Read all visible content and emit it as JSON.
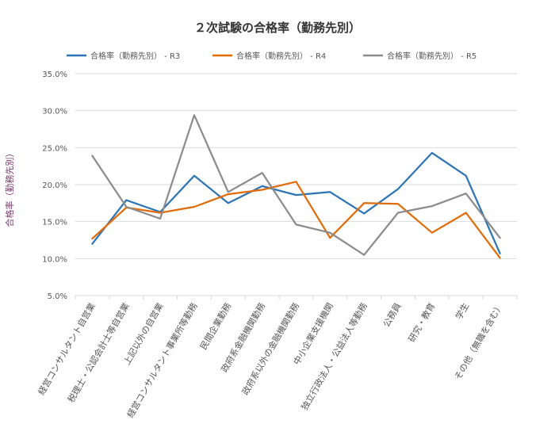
{
  "chart_data": {
    "type": "line",
    "title": "２次試験の合格率（勤務先別）",
    "ylabel": "合格率（勤務先別）",
    "ylim": [
      5.0,
      35.0
    ],
    "y_tick_step": 5.0,
    "y_tick_format": "percent_1dp",
    "grid": "horizontal",
    "legend_position": "top",
    "categories": [
      "経営コンサルタント自営業",
      "税理士・公認会計士等自営業",
      "上記以外の自営業",
      "経営コンサルタント事業所等勤務",
      "民間企業勤務",
      "政府系金融機関勤務",
      "政府系以外の金融機関勤務",
      "中小企業支援機関",
      "独立行政法人・公益法人等勤務",
      "公務員",
      "研究・教育",
      "学生",
      "その他（無職を含む）"
    ],
    "series": [
      {
        "name": "合格率（勤務先別） - R3",
        "color": "#2e75b6",
        "values": [
          12.0,
          17.9,
          16.3,
          21.2,
          17.5,
          19.8,
          18.6,
          19.0,
          16.1,
          19.4,
          24.3,
          21.2,
          10.7
        ]
      },
      {
        "name": "合格率（勤務先別） - R4",
        "color": "#e36c0a",
        "values": [
          12.7,
          16.9,
          16.2,
          17.0,
          18.7,
          19.3,
          20.4,
          12.8,
          17.5,
          17.4,
          13.5,
          16.2,
          10.1
        ]
      },
      {
        "name": "合格率（勤務先別） - R5",
        "color": "#8c8c8c",
        "values": [
          23.9,
          17.0,
          15.4,
          29.4,
          19.0,
          21.6,
          14.6,
          13.5,
          10.5,
          16.2,
          17.1,
          18.8,
          12.8
        ]
      }
    ]
  }
}
